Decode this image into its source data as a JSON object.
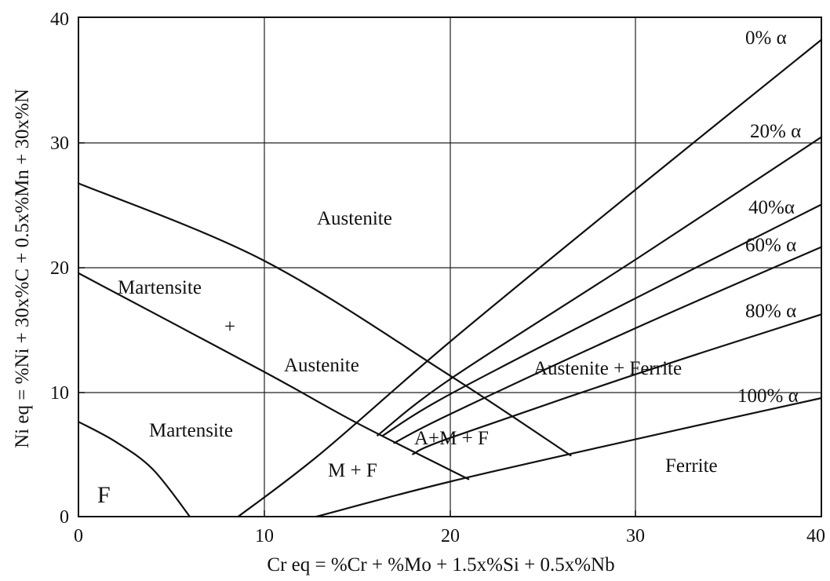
{
  "axes": {
    "x_title": "Cr eq = %Cr + %Mo + 1.5x%Si + 0.5x%Nb",
    "y_title": "Ni eq = %Ni + 30x%C + 0.5x%Mn + 30x%N",
    "xlim": [
      0,
      40
    ],
    "ylim": [
      0,
      40
    ],
    "x_ticks": [
      "0",
      "10",
      "20",
      "30",
      "40"
    ],
    "y_ticks": [
      "0",
      "10",
      "20",
      "30",
      "40"
    ],
    "grid": true
  },
  "regions": {
    "austenite": "Austenite",
    "martensite_top": "Martensite",
    "plus": "+",
    "austenite_mid": "Austenite",
    "martensite": "Martensite",
    "ferrite_f": "F",
    "m_plus_f": "M + F",
    "a_m_f": "A+M + F",
    "austenite_ferrite": "Austenite + Ferrite",
    "ferrite": "Ferrite"
  },
  "ferrite_lines": {
    "l0": "0% α",
    "l20": "20% α",
    "l40": "40%α",
    "l60": "60% α",
    "l80": "80% α",
    "l100": "100% α"
  },
  "chart_data": {
    "type": "line",
    "xlim": [
      0,
      40
    ],
    "ylim": [
      0,
      40
    ],
    "boundaries": [
      {
        "points": [
          [
            0,
            26.7
          ],
          [
            10,
            20.5
          ],
          [
            20,
            11.3
          ],
          [
            26.5,
            4.9
          ]
        ]
      },
      {
        "points": [
          [
            0,
            19.5
          ],
          [
            10,
            11.6
          ],
          [
            15,
            7.5
          ],
          [
            21,
            3.0
          ]
        ]
      },
      {
        "points": [
          [
            0,
            7.6
          ],
          [
            2,
            6.0
          ],
          [
            4,
            3.8
          ],
          [
            6,
            0
          ]
        ]
      },
      {
        "points": [
          [
            8.6,
            0
          ],
          [
            13,
            5.0
          ],
          [
            20,
            14.0
          ],
          [
            30,
            26.2
          ],
          [
            40,
            38.2
          ]
        ]
      },
      {
        "points": [
          [
            16.1,
            6.5
          ],
          [
            20,
            11.0
          ],
          [
            30,
            20.6
          ],
          [
            40,
            30.4
          ]
        ]
      },
      {
        "points": [
          [
            16.4,
            6.5
          ],
          [
            20,
            9.8
          ],
          [
            30,
            17.5
          ],
          [
            40,
            25.0
          ]
        ]
      },
      {
        "points": [
          [
            17.0,
            5.9
          ],
          [
            20,
            8.2
          ],
          [
            30,
            15.1
          ],
          [
            40,
            21.6
          ]
        ]
      },
      {
        "points": [
          [
            18.0,
            5.0
          ],
          [
            20,
            6.3
          ],
          [
            30,
            11.4
          ],
          [
            40,
            16.2
          ]
        ]
      },
      {
        "points": [
          [
            12.8,
            0
          ],
          [
            20,
            2.8
          ],
          [
            30,
            6.2
          ],
          [
            40,
            9.5
          ]
        ]
      }
    ]
  }
}
